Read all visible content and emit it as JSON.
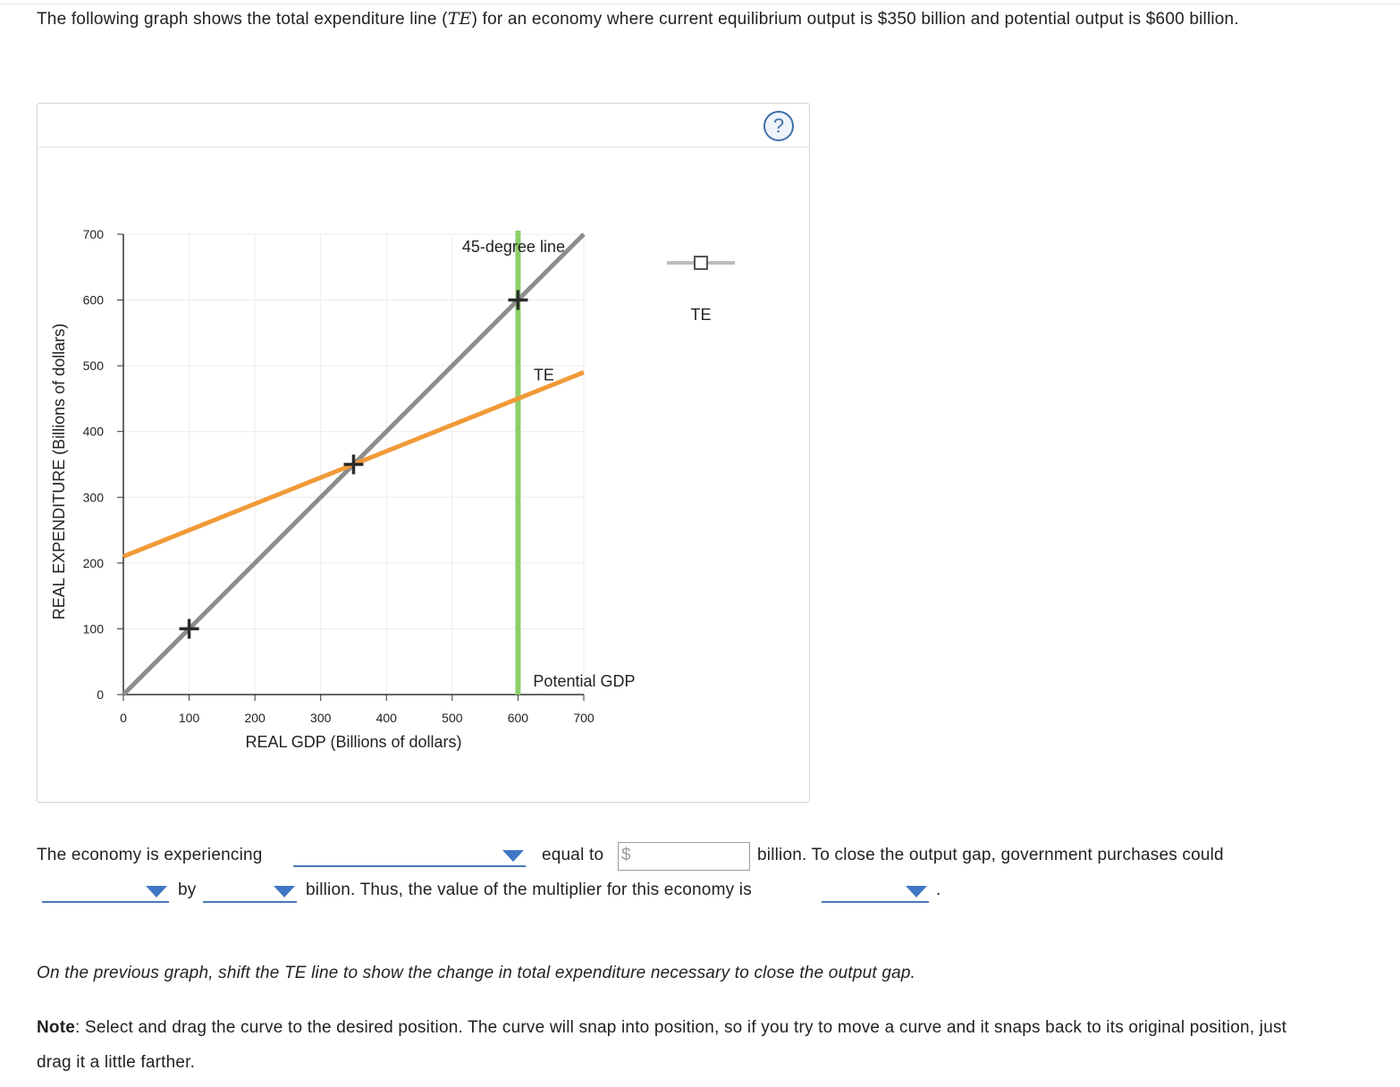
{
  "intro": {
    "text_before": "The following graph shows the total expenditure line (",
    "te_symbol": "TE",
    "text_after": ") for an economy where current equilibrium output is $350 billion and potential output is $600 billion."
  },
  "help_label": "?",
  "chart_data": {
    "type": "line",
    "xlabel": "REAL GDP (Billions of dollars)",
    "ylabel": "REAL EXPENDITURE (Billions of dollars)",
    "xlim": [
      0,
      700
    ],
    "ylim": [
      0,
      700
    ],
    "x_ticks": [
      0,
      100,
      200,
      300,
      400,
      500,
      600,
      700
    ],
    "y_ticks": [
      0,
      100,
      200,
      300,
      400,
      500,
      600,
      700
    ],
    "grid": true,
    "series": [
      {
        "name": "45-degree line",
        "color": "#8c8c8c",
        "points": [
          [
            0,
            0
          ],
          [
            700,
            700
          ]
        ]
      },
      {
        "name": "TE",
        "color": "#f19a38",
        "points": [
          [
            0,
            210
          ],
          [
            700,
            490
          ]
        ]
      }
    ],
    "vertical_lines": [
      {
        "name": "Potential GDP",
        "x": 600,
        "color": "#8ccf68"
      }
    ],
    "markers": [
      {
        "x": 100,
        "y": 100
      },
      {
        "x": 350,
        "y": 350
      },
      {
        "x": 600,
        "y": 600
      }
    ],
    "legend": {
      "label": "TE",
      "placement": "right"
    }
  },
  "question": {
    "part1": "The economy is experiencing",
    "part2": "equal to",
    "currency_symbol": "$",
    "part3": "billion. To close the output gap, government purchases could",
    "part4": "by",
    "part5": "billion. Thus, the value of the multiplier for this economy is",
    "part6": "."
  },
  "instruction": "On the previous graph, shift the TE line to show the change in total expenditure necessary to close the output gap.",
  "note": {
    "label": "Note",
    "text": ": Select and drag the curve to the desired position. The curve will snap into position, so if you try to move a curve and it snaps back to its original position, just drag it a little farther."
  }
}
